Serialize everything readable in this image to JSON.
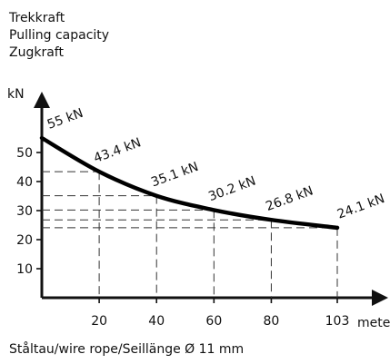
{
  "chart_data": {
    "type": "line",
    "title_lines": [
      "Trekkraft",
      "Pulling capacity",
      "Zugkraft"
    ],
    "ylabel": "kN",
    "xlabel": "meter",
    "footer": "Ståltau/wire rope/Seillänge   Ø 11 mm",
    "xlim": [
      0,
      103
    ],
    "ylim": [
      0,
      60
    ],
    "xticks": [
      20,
      40,
      60,
      80,
      103
    ],
    "xtick_labels": [
      "20",
      "40",
      "60",
      "80",
      "103"
    ],
    "yticks": [
      10,
      20,
      30,
      40,
      50
    ],
    "ytick_labels": [
      "10",
      "20",
      "30",
      "40",
      "50"
    ],
    "grid": false,
    "series": [
      {
        "x": [
          0,
          20,
          40,
          60,
          80,
          103
        ],
        "values": [
          55,
          43.4,
          35.1,
          30.2,
          26.8,
          24.1
        ],
        "labels": [
          "55 kN",
          "43.4 kN",
          "35.1 kN",
          "30.2 kN",
          "26.8 kN",
          "24.1 kN"
        ]
      }
    ]
  }
}
